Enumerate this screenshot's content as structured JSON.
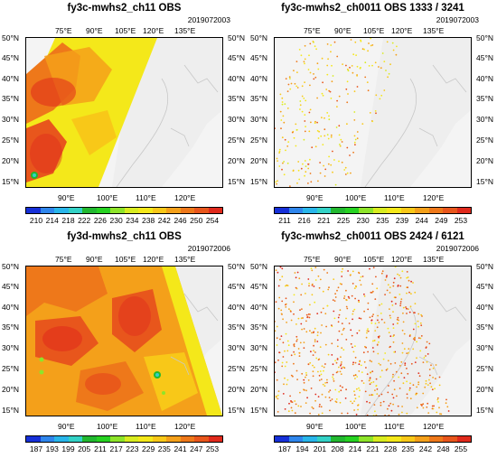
{
  "colors": [
    "#1630d8",
    "#2f86ec",
    "#29b6ea",
    "#33d2c6",
    "#22b830",
    "#27d222",
    "#8ee42a",
    "#d8ec20",
    "#f4e81a",
    "#f8c818",
    "#f4a01a",
    "#ee781a",
    "#e8561c",
    "#e02a1c"
  ],
  "panels": [
    {
      "title": "fy3c-mwhs2_ch11  OBS",
      "date": "2019072003",
      "kind": "gridded",
      "lat_labels": [
        "50°N",
        "45°N",
        "40°N",
        "35°N",
        "30°N",
        "25°N",
        "20°N",
        "15°N"
      ],
      "lon_top": [
        "75°E",
        "90°E",
        "105°E",
        "120°E",
        "135°E"
      ],
      "lon_bottom": [
        "90°E",
        "100°E",
        "110°E",
        "120°E"
      ],
      "colorbar_ticks": [
        "210",
        "214",
        "218",
        "222",
        "226",
        "230",
        "234",
        "238",
        "242",
        "246",
        "250",
        "254"
      ]
    },
    {
      "title": "fy3c-mwhs2_ch0011  OBS  1333 / 3241",
      "date": "2019072003",
      "kind": "dots",
      "lat_labels": [
        "50°N",
        "45°N",
        "40°N",
        "35°N",
        "30°N",
        "25°N",
        "20°N",
        "15°N"
      ],
      "lon_top": [
        "75°E",
        "90°E",
        "105°E",
        "120°E",
        "135°E"
      ],
      "lon_bottom": [
        "90°E",
        "100°E",
        "110°E",
        "120°E"
      ],
      "colorbar_ticks": [
        "211",
        "216",
        "221",
        "225",
        "230",
        "235",
        "239",
        "244",
        "249",
        "253"
      ]
    },
    {
      "title": "fy3d-mwhs2_ch11  OBS",
      "date": "2019072006",
      "kind": "gridded",
      "lat_labels": [
        "50°N",
        "45°N",
        "40°N",
        "35°N",
        "30°N",
        "25°N",
        "20°N",
        "15°N"
      ],
      "lon_top": [
        "75°E",
        "90°E",
        "105°E",
        "120°E",
        "135°E"
      ],
      "lon_bottom": [
        "90°E",
        "100°E",
        "110°E",
        "120°E"
      ],
      "colorbar_ticks": [
        "187",
        "193",
        "199",
        "205",
        "211",
        "217",
        "223",
        "229",
        "235",
        "241",
        "247",
        "253"
      ]
    },
    {
      "title": "fy3c-mwhs2_ch0011  OBS  2424 / 6121",
      "date": "2019072006",
      "kind": "dots",
      "lat_labels": [
        "50°N",
        "45°N",
        "40°N",
        "35°N",
        "30°N",
        "25°N",
        "20°N",
        "15°N"
      ],
      "lon_top": [
        "75°E",
        "90°E",
        "105°E",
        "120°E",
        "135°E"
      ],
      "lon_bottom": [
        "90°E",
        "100°E",
        "110°E",
        "120°E"
      ],
      "colorbar_ticks": [
        "187",
        "194",
        "201",
        "208",
        "214",
        "221",
        "228",
        "235",
        "242",
        "248",
        "255"
      ]
    }
  ]
}
